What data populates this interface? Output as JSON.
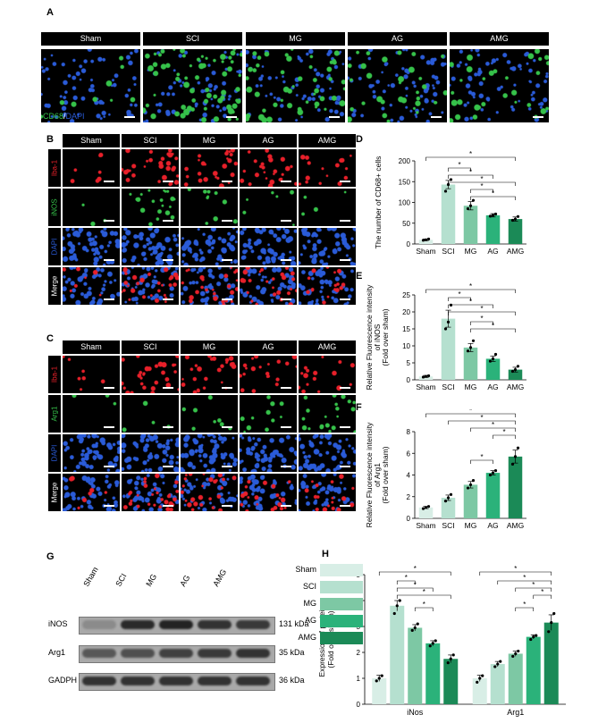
{
  "panels": {
    "A": "A",
    "B": "B",
    "C": "C",
    "D": "D",
    "E": "E",
    "F": "F",
    "G": "G",
    "H": "H"
  },
  "groups": [
    "Sham",
    "SCI",
    "MG",
    "AG",
    "AMG"
  ],
  "panelA": {
    "stain_cd68": "CD68",
    "stain_sep": "/",
    "stain_dapi": "DAPI"
  },
  "panelB": {
    "rows": [
      "Iba-1",
      "iNOS",
      "DAPI",
      "Merge"
    ]
  },
  "panelC": {
    "rows": [
      "Iba-1",
      "Arg1",
      "DAPI",
      "Merge"
    ]
  },
  "panelG": {
    "rows": [
      {
        "name": "iNOS",
        "kda": "131 kDa"
      },
      {
        "name": "Arg1",
        "kda": "35 kDa"
      },
      {
        "name": "GADPH",
        "kda": "36 kDa"
      }
    ]
  },
  "colors": {
    "Sham": "#d8eee6",
    "SCI": "#b5e0cf",
    "MG": "#7dc8a4",
    "AG": "#2bb27a",
    "AMG": "#1b8a57",
    "red_stain": "#e8202a",
    "green_stain": "#36c24a",
    "blue_stain": "#2a5bd8"
  },
  "significance_marker": "*",
  "chart_data": [
    {
      "panel": "D",
      "type": "bar",
      "categories": [
        "Sham",
        "SCI",
        "MG",
        "AG",
        "AMG"
      ],
      "values": [
        10,
        143,
        92,
        69,
        60
      ],
      "errors": [
        2,
        10,
        10,
        4,
        5
      ],
      "points": [
        [
          9,
          10,
          12
        ],
        [
          127,
          143,
          155
        ],
        [
          85,
          92,
          105
        ],
        [
          67,
          69,
          72
        ],
        [
          57,
          60,
          66
        ]
      ],
      "ylabel": "The number of CD68+ cells",
      "ylim": [
        0,
        200
      ],
      "yticks": [
        0,
        50,
        100,
        150,
        200
      ]
    },
    {
      "panel": "E",
      "type": "bar",
      "categories": [
        "Sham",
        "SCI",
        "MG",
        "AG",
        "AMG"
      ],
      "values": [
        1,
        18,
        9.5,
        6.2,
        3
      ],
      "errors": [
        0.3,
        2.5,
        1.2,
        0.8,
        0.7
      ],
      "points": [
        [
          0.8,
          1.0,
          1.2
        ],
        [
          15,
          17,
          22
        ],
        [
          8.5,
          9.5,
          11.5
        ],
        [
          5.5,
          6.2,
          7.5
        ],
        [
          2.5,
          3.0,
          4.0
        ]
      ],
      "ylabel_lines": [
        "Relative Fluorescence intensity",
        "of iNOS",
        "(Fold over sham)"
      ],
      "ylim": [
        0,
        25
      ],
      "yticks": [
        0,
        5,
        10,
        15,
        20,
        25
      ]
    },
    {
      "panel": "F",
      "type": "bar",
      "categories": [
        "Sham",
        "SCI",
        "MG",
        "AG",
        "AMG"
      ],
      "values": [
        1,
        1.9,
        3.1,
        4.2,
        5.7
      ],
      "errors": [
        0.1,
        0.25,
        0.3,
        0.2,
        0.6
      ],
      "points": [
        [
          0.9,
          1.0,
          1.1
        ],
        [
          1.6,
          1.9,
          2.2
        ],
        [
          2.8,
          3.1,
          3.5
        ],
        [
          4.0,
          4.2,
          4.4
        ],
        [
          5.0,
          5.7,
          6.5
        ]
      ],
      "ylabel_lines": [
        "Relative Fluorescence intensity",
        "of Arg1",
        "(Fold over sham)"
      ],
      "ylim": [
        0,
        8
      ],
      "yticks": [
        0,
        2,
        4,
        6,
        8
      ]
    },
    {
      "panel": "H",
      "type": "bar",
      "categories": [
        "iNos",
        "Arg1"
      ],
      "series": [
        {
          "name": "Sham",
          "values": [
            1.0,
            1.0
          ],
          "errors": [
            0.12,
            0.12
          ],
          "points": [
            [
              0.9,
              1.0,
              1.1
            ],
            [
              0.85,
              1.0,
              1.1
            ]
          ]
        },
        {
          "name": "SCI",
          "values": [
            3.8,
            1.55
          ],
          "errors": [
            0.2,
            0.1
          ],
          "points": [
            [
              3.5,
              3.8,
              4.0
            ],
            [
              1.45,
              1.55,
              1.65
            ]
          ]
        },
        {
          "name": "MG",
          "values": [
            2.95,
            1.95
          ],
          "errors": [
            0.12,
            0.1
          ],
          "points": [
            [
              2.85,
              2.95,
              3.1
            ],
            [
              1.85,
              1.95,
              2.05
            ]
          ]
        },
        {
          "name": "AG",
          "values": [
            2.35,
            2.6
          ],
          "errors": [
            0.1,
            0.08
          ],
          "points": [
            [
              2.25,
              2.35,
              2.45
            ],
            [
              2.5,
              2.6,
              2.65
            ]
          ]
        },
        {
          "name": "AMG",
          "values": [
            1.75,
            3.15
          ],
          "errors": [
            0.15,
            0.3
          ],
          "points": [
            [
              1.6,
              1.75,
              1.9
            ],
            [
              2.8,
              3.15,
              3.5
            ]
          ]
        }
      ],
      "ylabel_lines": [
        "Expression of proteins",
        "(Fold over sham)"
      ],
      "ylim": [
        0,
        5
      ],
      "yticks": [
        0,
        1,
        2,
        3,
        4,
        5
      ],
      "legend": "top-left"
    }
  ]
}
